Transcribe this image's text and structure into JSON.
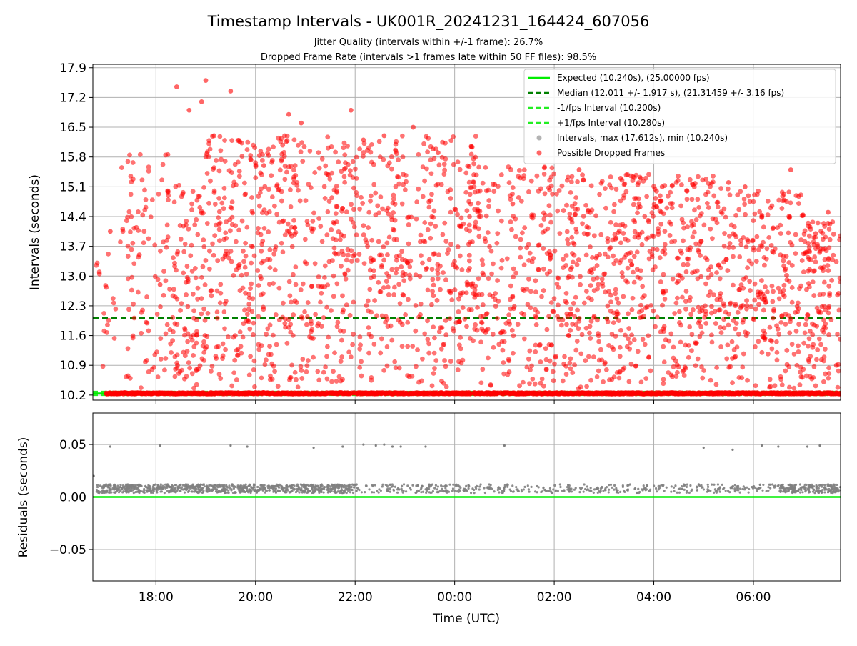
{
  "figure": {
    "title": "Timestamp Intervals - UK001R_20241231_164424_607056",
    "subtitle_1": "Jitter Quality (intervals within +/-1 frame): 26.7%",
    "subtitle_2": "Dropped Frame Rate (intervals >1 frames late within 50 FF files): 98.5%"
  },
  "colors": {
    "expected": "#00ee00",
    "median": "#008000",
    "fps_band": "#22ee22",
    "dropped": "#ff0000",
    "intervals": "#808080",
    "grid": "#b0b0b0"
  },
  "chart_data": [
    {
      "type": "scatter",
      "title": "Timestamp Intervals - UK001R_20241231_164424_607056",
      "xlabel": "",
      "ylabel": "Intervals (seconds)",
      "ylim": [
        10.08,
        17.98
      ],
      "yticks": [
        "10.2",
        "10.9",
        "11.6",
        "12.3",
        "13.0",
        "13.7",
        "14.4",
        "15.1",
        "15.8",
        "16.5",
        "17.2",
        "17.9"
      ],
      "grid": true,
      "legend_placement": "top-right",
      "legend": [
        "Expected (10.240s), (25.00000 fps)",
        "Median (12.011 +/- 1.917 s), (21.31459 +/- 3.16 fps)",
        "-1/fps Interval (10.200s)",
        "+1/fps Interval (10.280s)",
        "Intervals, max (17.612s), min (10.240s)",
        "Possible Dropped Frames"
      ],
      "lines": {
        "expected": 10.24,
        "median": 12.011,
        "minus_fps": 10.2,
        "plus_fps": 10.28
      },
      "interval_max": 17.612,
      "interval_min": 10.24,
      "x_start": "16:44",
      "x_end": "07:45",
      "dropped_frame_points": [
        {
          "t": "17:05",
          "y": 14.05
        },
        {
          "t": "17:40",
          "y": 13.5
        },
        {
          "t": "18:05",
          "y": 12.8
        },
        {
          "t": "18:25",
          "y": 17.45
        },
        {
          "t": "18:40",
          "y": 16.9
        },
        {
          "t": "18:55",
          "y": 17.1
        },
        {
          "t": "19:00",
          "y": 17.6
        },
        {
          "t": "19:10",
          "y": 16.3
        },
        {
          "t": "19:30",
          "y": 17.35
        },
        {
          "t": "20:10",
          "y": 15.6
        },
        {
          "t": "20:40",
          "y": 16.8
        },
        {
          "t": "20:55",
          "y": 16.6
        },
        {
          "t": "21:55",
          "y": 16.9
        },
        {
          "t": "22:10",
          "y": 16.2
        },
        {
          "t": "22:35",
          "y": 16.3
        },
        {
          "t": "23:10",
          "y": 16.5
        },
        {
          "t": "23:40",
          "y": 15.9
        },
        {
          "t": "00:20",
          "y": 16.05
        },
        {
          "t": "01:10",
          "y": 14.7
        },
        {
          "t": "02:30",
          "y": 15.5
        },
        {
          "t": "03:20",
          "y": 15.3
        },
        {
          "t": "04:10",
          "y": 15.1
        },
        {
          "t": "04:40",
          "y": 15.0
        },
        {
          "t": "05:30",
          "y": 15.2
        },
        {
          "t": "05:50",
          "y": 15.1
        },
        {
          "t": "06:10",
          "y": 14.4
        },
        {
          "t": "06:45",
          "y": 15.5
        },
        {
          "t": "07:15",
          "y": 14.0
        },
        {
          "t": "07:30",
          "y": 14.5
        },
        {
          "t": "07:40",
          "y": 10.9
        }
      ]
    },
    {
      "type": "scatter",
      "xlabel": "Time (UTC)",
      "ylabel": "Residuals (seconds)",
      "ylim": [
        -0.08,
        0.08
      ],
      "yticks": [
        "0.05",
        "0.00",
        "−0.05"
      ],
      "xticks": [
        "18:00",
        "20:00",
        "22:00",
        "00:00",
        "02:00",
        "04:00",
        "06:00"
      ],
      "grid": true,
      "zero_line": 0.0,
      "residual_band": [
        0.004,
        0.012
      ],
      "residual_outliers": [
        {
          "t": "16:45",
          "y": 0.02
        },
        {
          "t": "17:05",
          "y": 0.048
        },
        {
          "t": "18:05",
          "y": 0.049
        },
        {
          "t": "19:30",
          "y": 0.049
        },
        {
          "t": "19:50",
          "y": 0.048
        },
        {
          "t": "21:10",
          "y": 0.047
        },
        {
          "t": "21:45",
          "y": 0.048
        },
        {
          "t": "22:10",
          "y": 0.05
        },
        {
          "t": "22:25",
          "y": 0.049
        },
        {
          "t": "22:35",
          "y": 0.05
        },
        {
          "t": "22:45",
          "y": 0.048
        },
        {
          "t": "22:55",
          "y": 0.048
        },
        {
          "t": "23:25",
          "y": 0.048
        },
        {
          "t": "01:00",
          "y": 0.049
        },
        {
          "t": "05:00",
          "y": 0.047
        },
        {
          "t": "05:35",
          "y": 0.045
        },
        {
          "t": "06:10",
          "y": 0.049
        },
        {
          "t": "06:30",
          "y": 0.048
        },
        {
          "t": "07:05",
          "y": 0.048
        },
        {
          "t": "07:20",
          "y": 0.049
        }
      ]
    }
  ]
}
